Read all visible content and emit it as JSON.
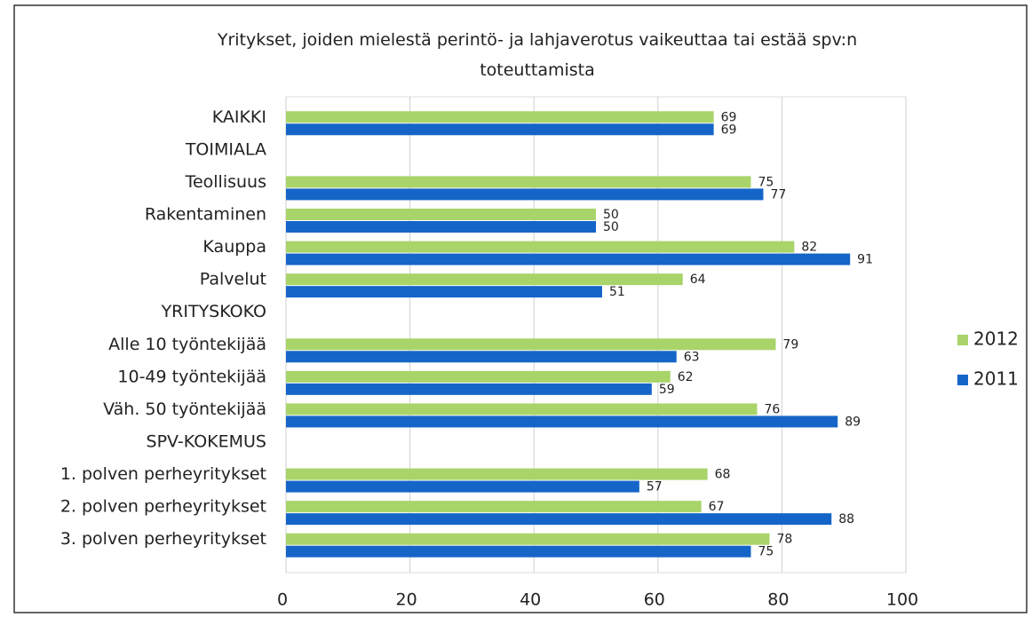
{
  "chart_data": {
    "type": "bar",
    "orientation": "horizontal",
    "title": "Yritykset, joiden mielestä perintö- ja lahjaverotus vaikeuttaa tai estää spv:n toteuttamista",
    "categories": [
      "KAIKKI",
      "TOIMIALA",
      "Teollisuus",
      "Rakentaminen",
      "Kauppa",
      "Palvelut",
      "YRITYSKOKO",
      "Alle 10 työntekijää",
      "10-49 työntekijää",
      "Väh. 50 työntekijää",
      "SPV-KOKEMUS",
      "1. polven perheyritykset",
      "2. polven perheyritykset",
      "3. polven perheyritykset"
    ],
    "series": [
      {
        "name": "2012",
        "color": "#a8d46a",
        "values": [
          69,
          null,
          75,
          50,
          82,
          64,
          null,
          79,
          62,
          76,
          null,
          68,
          67,
          78
        ]
      },
      {
        "name": "2011",
        "color": "#1565c8",
        "values": [
          69,
          null,
          77,
          50,
          91,
          51,
          null,
          63,
          59,
          89,
          null,
          57,
          88,
          75
        ]
      }
    ],
    "xlim": [
      0,
      100
    ],
    "xticks": [
      0,
      20,
      40,
      60,
      80,
      100
    ],
    "grid": true,
    "legend": "right"
  }
}
